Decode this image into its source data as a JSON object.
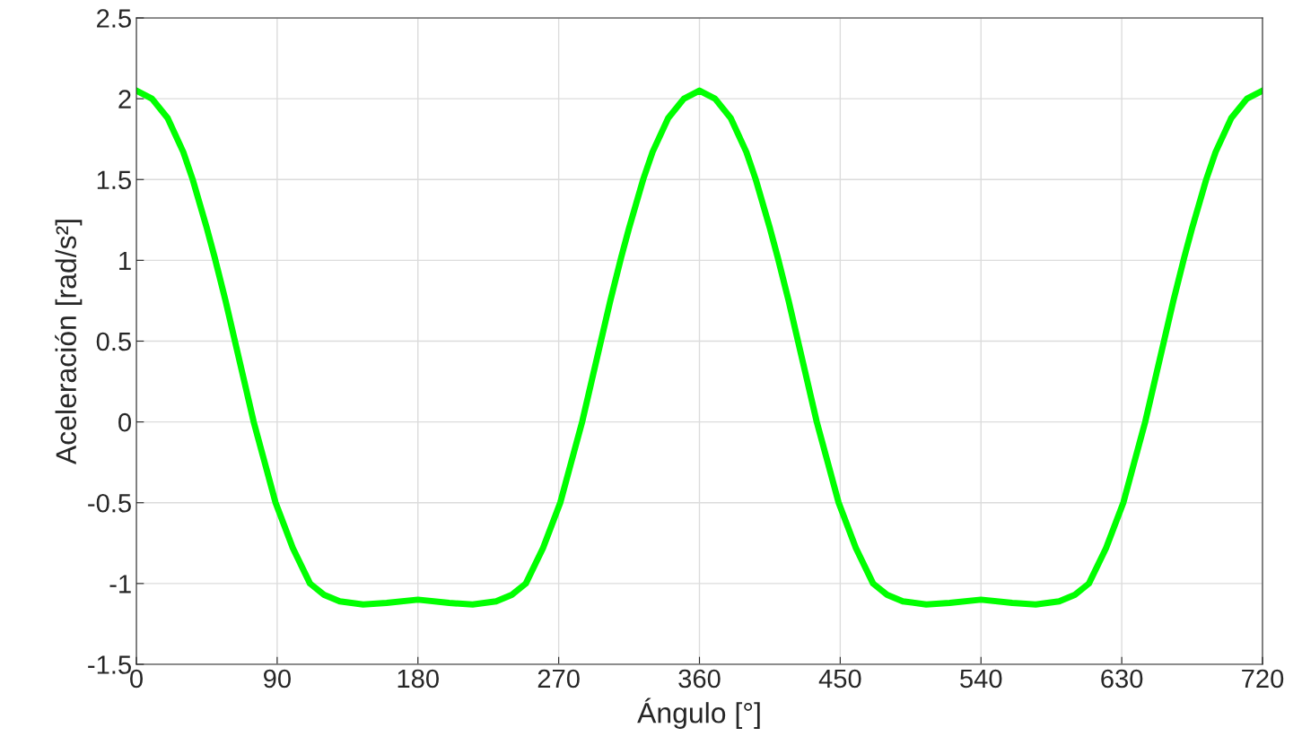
{
  "chart_data": {
    "type": "line",
    "xlabel": "Ángulo [°]",
    "ylabel": "Aceleración [rad/s²]",
    "x": [
      0,
      10,
      20,
      30,
      36,
      45,
      50,
      57,
      63,
      69,
      75,
      82,
      89,
      100,
      111,
      120,
      130,
      145,
      160,
      180,
      200,
      215,
      230,
      240,
      249,
      260,
      271,
      278,
      285,
      291,
      297,
      303,
      310,
      315,
      324,
      330,
      340,
      350,
      360,
      370,
      380,
      390,
      396,
      405,
      410,
      417,
      423,
      429,
      435,
      442,
      449,
      460,
      471,
      480,
      490,
      505,
      520,
      540,
      560,
      575,
      590,
      600,
      609,
      620,
      631,
      638,
      645,
      651,
      657,
      663,
      670,
      675,
      684,
      690,
      700,
      710,
      720
    ],
    "series": [
      {
        "color": "#00ff00",
        "values": [
          2.05,
          2.0,
          1.88,
          1.67,
          1.5,
          1.2,
          1.02,
          0.75,
          0.5,
          0.25,
          0,
          -0.25,
          -0.5,
          -0.78,
          -1.0,
          -1.07,
          -1.11,
          -1.13,
          -1.12,
          -1.1,
          -1.12,
          -1.13,
          -1.11,
          -1.07,
          -1.0,
          -0.78,
          -0.5,
          -0.25,
          0,
          0.25,
          0.5,
          0.75,
          1.02,
          1.2,
          1.5,
          1.67,
          1.88,
          2.0,
          2.05,
          2.0,
          1.88,
          1.67,
          1.5,
          1.2,
          1.02,
          0.75,
          0.5,
          0.25,
          0,
          -0.25,
          -0.5,
          -0.78,
          -1.0,
          -1.07,
          -1.11,
          -1.13,
          -1.12,
          -1.1,
          -1.12,
          -1.13,
          -1.11,
          -1.07,
          -1.0,
          -0.78,
          -0.5,
          -0.25,
          0,
          0.25,
          0.5,
          0.75,
          1.02,
          1.2,
          1.5,
          1.67,
          1.88,
          2.0,
          2.05
        ]
      }
    ],
    "xlim": [
      0,
      720
    ],
    "xticks": [
      0,
      90,
      180,
      270,
      360,
      450,
      540,
      630,
      720
    ],
    "ylim": [
      -1.5,
      2.5
    ],
    "yticks": [
      -1.5,
      -1,
      -0.5,
      0,
      0.5,
      1,
      1.5,
      2,
      2.5
    ],
    "grid": true,
    "line_style": "solid",
    "marker": "none"
  }
}
